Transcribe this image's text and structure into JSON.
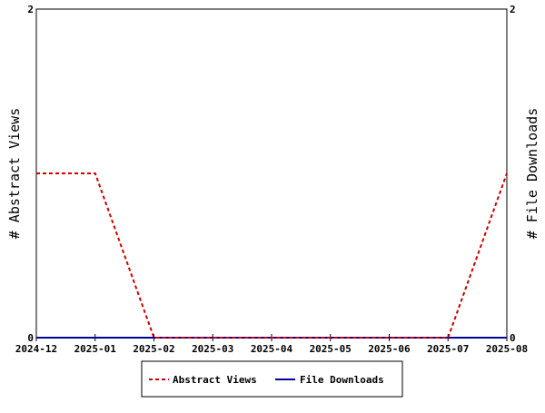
{
  "chart_data": {
    "type": "line",
    "x": [
      "2024-12",
      "2025-01",
      "2025-02",
      "2025-03",
      "2025-04",
      "2025-05",
      "2025-06",
      "2025-07",
      "2025-08"
    ],
    "series": [
      {
        "name": "Abstract Views",
        "axis": "left",
        "color": "#cc0000",
        "dash": "dashed",
        "values": [
          1,
          1,
          0,
          0,
          0,
          0,
          0,
          0,
          1
        ]
      },
      {
        "name": "File Downloads",
        "axis": "right",
        "color": "#000099",
        "dash": "solid",
        "values": [
          0,
          0,
          0,
          0,
          0,
          0,
          0,
          0,
          0
        ]
      }
    ],
    "ylabel": "# Abstract Views",
    "y2label": "# File Downloads",
    "ylim": [
      0,
      2
    ],
    "y2lim": [
      0,
      2
    ],
    "yticks": [
      "0",
      "2"
    ],
    "y2ticks": [
      "0",
      "2"
    ],
    "grid": false,
    "legend": "bottom-center"
  }
}
